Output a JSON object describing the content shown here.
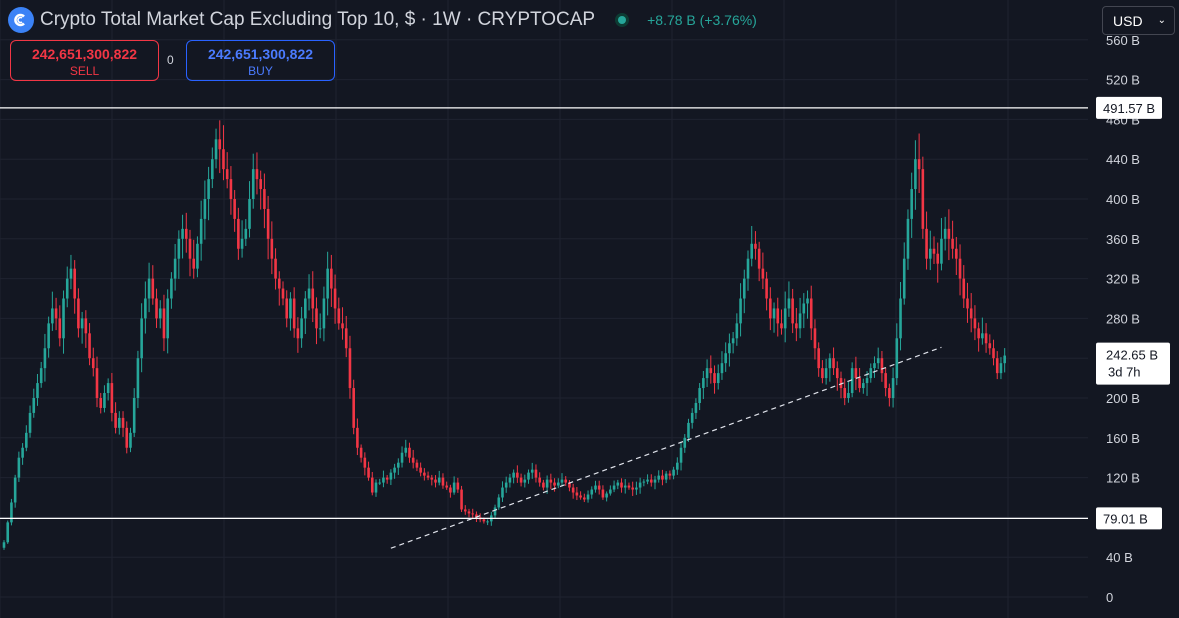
{
  "header": {
    "title": "Crypto Total Market Cap Excluding Top 10, $ · 1W · CRYPTOCAP",
    "change": "+8.78 B (+3.76%)"
  },
  "trade": {
    "sell_price": "242,651,300,822",
    "sell_label": "SELL",
    "spread": "0",
    "buy_price": "242,651,300,822",
    "buy_label": "BUY"
  },
  "currency": {
    "selected": "USD"
  },
  "colors": {
    "background": "#131722",
    "up": "#26a69a",
    "down": "#f23645",
    "grid": "#1f2330",
    "axis_text": "#d1d4dc",
    "accent_blue": "#2962ff"
  },
  "chart_data": {
    "type": "candlestick",
    "title": "Crypto Total Market Cap Excluding Top 10, $ · 1W · CRYPTOCAP",
    "ylabel": "",
    "ylim": [
      0,
      580
    ],
    "y_unit": "B",
    "yticks": [
      0,
      40,
      80,
      120,
      160,
      200,
      240,
      280,
      320,
      360,
      400,
      440,
      480,
      520,
      560
    ],
    "ytick_labels": [
      "0",
      "40 B",
      "80 B",
      "120 B",
      "160 B",
      "200 B",
      "240 B",
      "280 B",
      "320 B",
      "360 B",
      "400 B",
      "440 B",
      "480 B",
      "520 B",
      "560 B"
    ],
    "grid": true,
    "series": [
      {
        "closes": [
          55,
          75,
          95,
          120,
          140,
          150,
          165,
          185,
          200,
          215,
          230,
          250,
          275,
          290,
          280,
          260,
          300,
          320,
          330,
          300,
          270,
          280,
          265,
          240,
          230,
          200,
          190,
          205,
          215,
          185,
          170,
          180,
          170,
          150,
          165,
          200,
          240,
          280,
          300,
          320,
          300,
          280,
          290,
          260,
          300,
          320,
          340,
          360,
          370,
          360,
          340,
          330,
          355,
          380,
          400,
          420,
          440,
          460,
          450,
          430,
          420,
          400,
          380,
          350,
          360,
          370,
          400,
          430,
          420,
          410,
          390,
          360,
          340,
          320,
          310,
          300,
          280,
          300,
          270,
          260,
          280,
          300,
          310,
          290,
          270,
          270,
          300,
          330,
          310,
          290,
          275,
          270,
          250,
          210,
          170,
          150,
          140,
          130,
          120,
          105,
          115,
          115,
          120,
          118,
          125,
          130,
          135,
          145,
          150,
          140,
          135,
          130,
          125,
          122,
          120,
          118,
          115,
          120,
          112,
          110,
          105,
          115,
          108,
          88,
          86,
          84,
          83,
          80,
          78,
          76,
          76,
          82,
          90,
          100,
          110,
          115,
          120,
          125,
          120,
          115,
          118,
          125,
          128,
          120,
          115,
          110,
          118,
          115,
          112,
          115,
          118,
          115,
          110,
          105,
          102,
          100,
          98,
          103,
          108,
          112,
          108,
          100,
          104,
          108,
          112,
          115,
          110,
          112,
          110,
          108,
          110,
          115,
          116,
          118,
          115,
          118,
          122,
          118,
          124,
          122,
          128,
          135,
          150,
          160,
          175,
          185,
          195,
          210,
          220,
          230,
          225,
          215,
          225,
          235,
          245,
          255,
          260,
          275,
          300,
          320,
          340,
          355,
          350,
          330,
          320,
          300,
          280,
          290,
          275,
          270,
          290,
          300,
          275,
          270,
          285,
          295,
          300,
          270,
          250,
          230,
          220,
          230,
          240,
          230,
          220,
          210,
          200,
          205,
          230,
          220,
          210,
          215,
          220,
          230,
          235,
          240,
          225,
          210,
          200,
          220,
          260,
          300,
          340,
          380,
          410,
          440,
          430,
          370,
          340,
          350,
          345,
          335,
          360,
          370,
          360,
          350,
          340,
          320,
          300,
          290,
          280,
          270,
          260,
          265,
          255,
          250,
          240,
          225,
          235,
          242.65
        ]
      }
    ],
    "annotations": [
      {
        "type": "horizontal_line",
        "value": 491.57,
        "label": "491.57 B"
      },
      {
        "type": "horizontal_line",
        "value": 79.01,
        "label": "79.01 B"
      },
      {
        "type": "trendline",
        "style": "dashed",
        "from": {
          "bar": 104,
          "value": 49
        },
        "to": {
          "bar": 252,
          "value": 251
        }
      },
      {
        "type": "price_label",
        "value": 242.65,
        "label": "242.65 B",
        "sub": "3d 7h"
      }
    ]
  }
}
